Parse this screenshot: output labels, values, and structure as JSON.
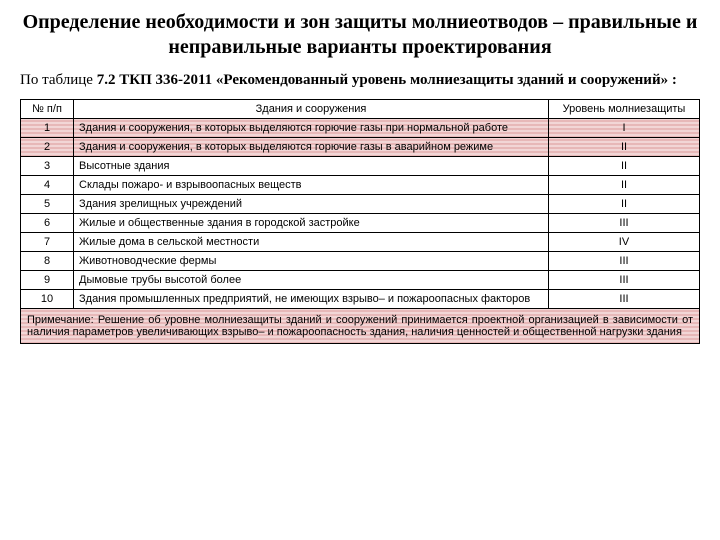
{
  "title": "Определение необходимости и зон защиты молниеотводов – правильные и неправильные варианты проектирования",
  "subtitle_prefix": "По таблице",
  "subtitle_ref": "7.2 ТКП 336-2011 «Рекомендованный уровень молниезащиты зданий и сооружений» :",
  "table": {
    "headers": [
      "№ п/п",
      "Здания и сооружения",
      "Уровень молниезащиты"
    ],
    "rows": [
      {
        "n": "1",
        "txt": "Здания и сооружения, в которых выделяются горючие газы при нормальной работе",
        "lvl": "I",
        "hl": true
      },
      {
        "n": "2",
        "txt": "Здания и сооружения, в которых выделяются горючие газы в аварийном режиме",
        "lvl": "II",
        "hl": true
      },
      {
        "n": "3",
        "txt": "Высотные здания",
        "lvl": "II",
        "hl": false
      },
      {
        "n": "4",
        "txt": "Склады пожаро- и взрывоопасных веществ",
        "lvl": "II",
        "hl": false
      },
      {
        "n": "5",
        "txt": "Здания зрелищных учреждений",
        "lvl": "II",
        "hl": false
      },
      {
        "n": "6",
        "txt": "Жилые и общественные здания в городской застройке",
        "lvl": "III",
        "hl": false
      },
      {
        "n": "7",
        "txt": "Жилые дома в сельской местности",
        "lvl": "IV",
        "hl": false
      },
      {
        "n": "8",
        "txt": "Животноводческие фермы",
        "lvl": "III",
        "hl": false
      },
      {
        "n": "9",
        "txt": "Дымовые трубы высотой более",
        "lvl": "III",
        "hl": false
      },
      {
        "n": "10",
        "txt": "Здания промышленных предприятий, не имеющих взрыво– и пожароопасных факторов",
        "lvl": "III",
        "hl": false
      }
    ],
    "note": "Примечание: Решение об уровне молниезащиты зданий и сооружений принимается проектной организацией в зависимости от наличия параметров увеличивающих взрыво– и пожароопасность здания, наличия ценностей и общественной нагрузки здания"
  }
}
